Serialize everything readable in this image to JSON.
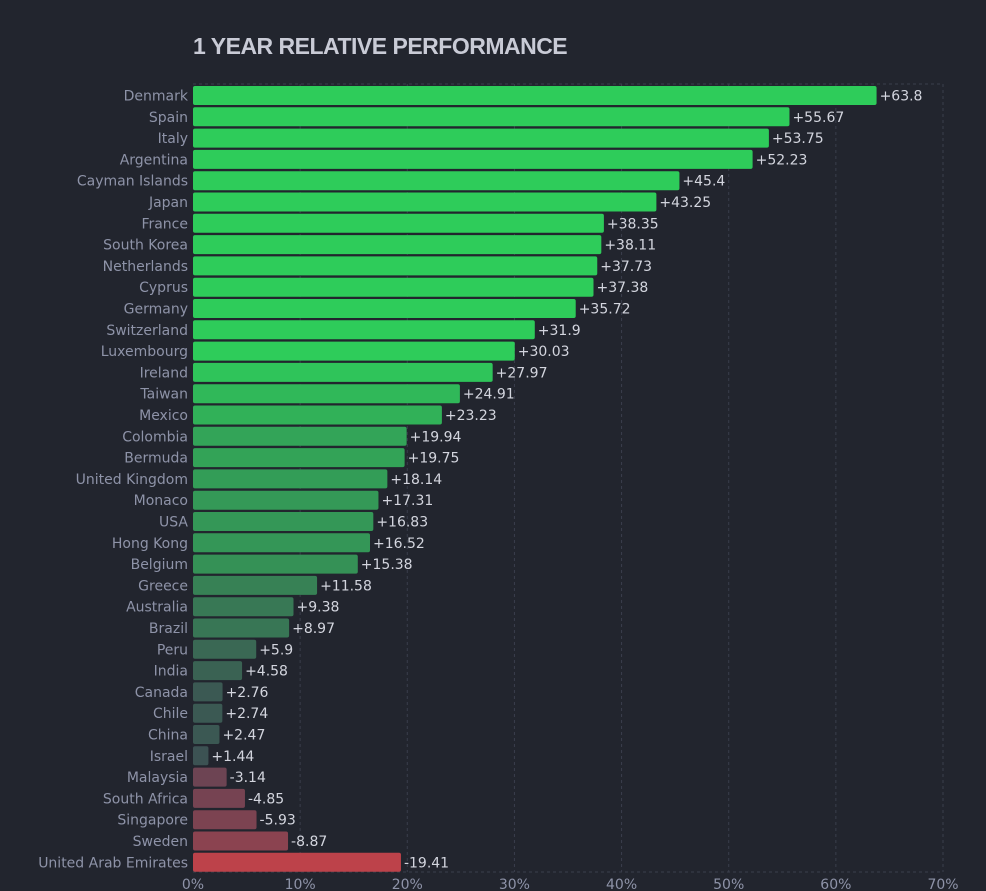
{
  "chart_data": {
    "type": "bar",
    "orientation": "horizontal",
    "title": "1 YEAR RELATIVE PERFORMANCE",
    "xlabel": "",
    "ylabel": "",
    "xlim": [
      0,
      70
    ],
    "x_ticks": [
      "0%",
      "10%",
      "20%",
      "30%",
      "40%",
      "50%",
      "60%",
      "70%"
    ],
    "bar_length": "absolute value",
    "grid": true,
    "legend": "none",
    "positive_color": "#2ecc5a",
    "negative_color": "#c0424a",
    "neutral_color": "#3d4a52",
    "categories": [
      "Denmark",
      "Spain",
      "Italy",
      "Argentina",
      "Cayman Islands",
      "Japan",
      "France",
      "South Korea",
      "Netherlands",
      "Cyprus",
      "Germany",
      "Switzerland",
      "Luxembourg",
      "Ireland",
      "Taiwan",
      "Mexico",
      "Colombia",
      "Bermuda",
      "United Kingdom",
      "Monaco",
      "USA",
      "Hong Kong",
      "Belgium",
      "Greece",
      "Australia",
      "Brazil",
      "Peru",
      "India",
      "Canada",
      "Chile",
      "China",
      "Israel",
      "Malaysia",
      "South Africa",
      "Singapore",
      "Sweden",
      "United Arab Emirates"
    ],
    "values": [
      63.8,
      55.67,
      53.75,
      52.23,
      45.4,
      43.25,
      38.35,
      38.11,
      37.73,
      37.38,
      35.72,
      31.9,
      30.03,
      27.97,
      24.91,
      23.23,
      19.94,
      19.75,
      18.14,
      17.31,
      16.83,
      16.52,
      15.38,
      11.58,
      9.38,
      8.97,
      5.9,
      4.58,
      2.76,
      2.74,
      2.47,
      1.44,
      -3.14,
      -4.85,
      -5.93,
      -8.87,
      -19.41
    ],
    "value_labels": [
      "+63.8",
      "+55.67",
      "+53.75",
      "+52.23",
      "+45.4",
      "+43.25",
      "+38.35",
      "+38.11",
      "+37.73",
      "+37.38",
      "+35.72",
      "+31.9",
      "+30.03",
      "+27.97",
      "+24.91",
      "+23.23",
      "+19.94",
      "+19.75",
      "+18.14",
      "+17.31",
      "+16.83",
      "+16.52",
      "+15.38",
      "+11.58",
      "+9.38",
      "+8.97",
      "+5.9",
      "+4.58",
      "+2.76",
      "+2.74",
      "+2.47",
      "+1.44",
      "-3.14",
      "-4.85",
      "-5.93",
      "-8.87",
      "-19.41"
    ]
  }
}
